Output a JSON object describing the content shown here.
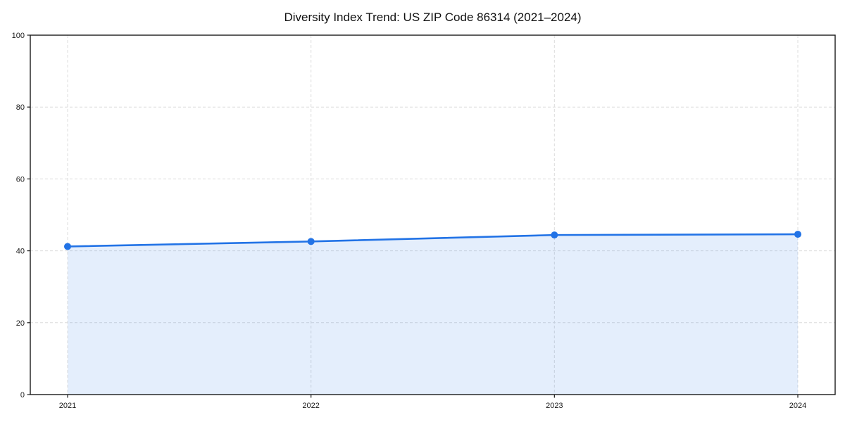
{
  "chart_data": {
    "type": "line",
    "title": "Diversity Index Trend: US ZIP Code 86314 (2021–2024)",
    "x": [
      2021,
      2022,
      2023,
      2024
    ],
    "series": [
      {
        "name": "Diversity Index",
        "values": [
          41.2,
          42.6,
          44.4,
          44.6
        ]
      }
    ],
    "xlabel": "",
    "ylabel": "",
    "ylim": [
      0,
      100
    ],
    "yticks": [
      0,
      20,
      40,
      60,
      80,
      100
    ],
    "grid": true,
    "grid_style": "dashed",
    "legend_position": "none",
    "area_fill_between_first_and_last_point": true,
    "colors": {
      "line": "#2273e6",
      "marker": "#2273e6",
      "fill": "#2273e6",
      "fill_opacity": 0.12,
      "grid": "#dcdcdc",
      "axis": "#1a1a1a",
      "tick_text": "#1a1a1a",
      "background": "#ffffff"
    }
  }
}
